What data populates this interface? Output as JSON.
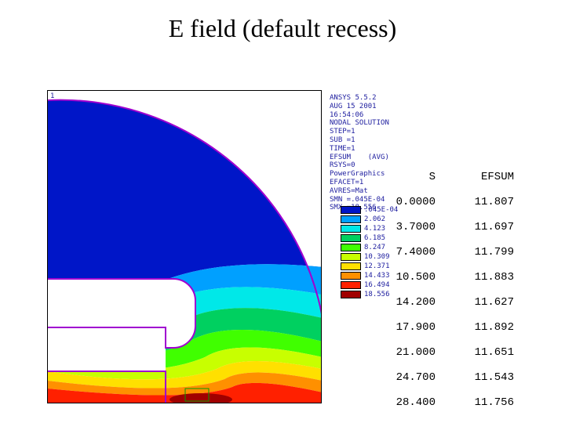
{
  "title": "E field (default recess)",
  "ansys_header": [
    "ANSYS 5.5.2",
    "AUG 15 2001",
    "16:54:06",
    "NODAL SOLUTION",
    "STEP=1",
    "SUB =1",
    "TIME=1",
    "EFSUM    (AVG)",
    "RSYS=0",
    "PowerGraphics",
    "EFACET=1",
    "AVRES=Mat",
    "SMN =.045E-04",
    "SMX =18.556"
  ],
  "legend": {
    "items": [
      {
        "color": "#0016c8",
        "label": ".045E-04"
      },
      {
        "color": "#00a0ff",
        "label": "2.062"
      },
      {
        "color": "#00e8e8",
        "label": "4.123"
      },
      {
        "color": "#00d060",
        "label": "6.185"
      },
      {
        "color": "#40ff00",
        "label": "8.247"
      },
      {
        "color": "#c8ff00",
        "label": "10.309"
      },
      {
        "color": "#ffe000",
        "label": "12.371"
      },
      {
        "color": "#ff9000",
        "label": "14.433"
      },
      {
        "color": "#ff2000",
        "label": "16.494"
      },
      {
        "color": "#a00000",
        "label": "18.556"
      }
    ]
  },
  "table": {
    "headers": {
      "s": "S",
      "e": "EFSUM"
    },
    "rows": [
      {
        "s": "0.0000",
        "e": "11.807"
      },
      {
        "s": "3.7000",
        "e": "11.697"
      },
      {
        "s": "7.4000",
        "e": "11.799"
      },
      {
        "s": "10.500",
        "e": "11.883"
      },
      {
        "s": "14.200",
        "e": "11.627"
      },
      {
        "s": "17.900",
        "e": "11.892"
      },
      {
        "s": "21.000",
        "e": "11.651"
      },
      {
        "s": "24.700",
        "e": "11.543"
      },
      {
        "s": "28.400",
        "e": "11.756"
      }
    ]
  },
  "contour": {
    "background": "#ffffff",
    "regions": {
      "darkblue": "#0016c8",
      "lightblue": "#00a0ff",
      "cyan": "#00e8e8",
      "teal": "#00d060",
      "green": "#40ff00",
      "yellowgreen": "#c8ff00",
      "yellow": "#ffe000",
      "orange": "#ff9000",
      "red": "#ff2000",
      "darkred": "#a00000"
    },
    "outline_color": "#a000d0"
  },
  "corner_label": "1"
}
